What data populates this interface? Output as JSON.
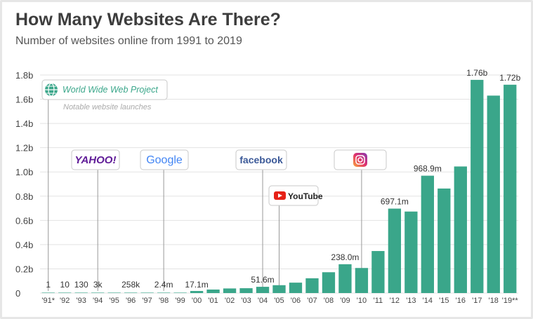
{
  "title": "How Many Websites Are There?",
  "subtitle": "Number of websites online from 1991 to 2019",
  "legend": {
    "project_label": "World Wide Web Project",
    "notable_label": "Notable website launches"
  },
  "logos": {
    "yahoo": "YAHOO!",
    "google": "Google",
    "facebook": "facebook",
    "youtube": "YouTube"
  },
  "colors": {
    "bar": "#3aa68a",
    "grid": "#e3e3e3",
    "instagram_gradient": [
      "#f9a93a",
      "#e1306c",
      "#833ab4"
    ],
    "youtube_red": "#e62117",
    "facebook_blue": "#3b5998",
    "yahoo_purple": "#5f1b97"
  },
  "chart_data": {
    "type": "bar",
    "title": "How Many Websites Are There?",
    "subtitle": "Number of websites online from 1991 to 2019",
    "xlabel": "",
    "ylabel": "",
    "ylim": [
      0,
      1.8
    ],
    "y_ticks": [
      "0",
      "0.2b",
      "0.4b",
      "0.6b",
      "0.8b",
      "1.0b",
      "1.2b",
      "1.4b",
      "1.6b",
      "1.8b"
    ],
    "grid": true,
    "categories": [
      "'91*",
      "'92",
      "'93",
      "'94",
      "'95",
      "'96",
      "'97",
      "'98",
      "'99",
      "'00",
      "'01",
      "'02",
      "'03",
      "'04",
      "'05",
      "'06",
      "'07",
      "'08",
      "'09",
      "'10",
      "'11",
      "'12",
      "'13",
      "'14",
      "'15",
      "'16",
      "'17",
      "'18",
      "'19**"
    ],
    "values": [
      1e-09,
      1e-08,
      1.3e-07,
      3e-06,
      2e-05,
      0.000258,
      0.0012,
      0.0024,
      0.0032,
      0.0171,
      0.029,
      0.038,
      0.04,
      0.0516,
      0.065,
      0.086,
      0.122,
      0.172,
      0.238,
      0.207,
      0.347,
      0.6971,
      0.673,
      0.9689,
      0.863,
      1.045,
      1.76,
      1.63,
      1.72
    ],
    "data_labels": [
      {
        "index": 0,
        "text": "1"
      },
      {
        "index": 1,
        "text": "10"
      },
      {
        "index": 2,
        "text": "130"
      },
      {
        "index": 3,
        "text": "3k"
      },
      {
        "index": 5,
        "text": "258k"
      },
      {
        "index": 7,
        "text": "2.4m"
      },
      {
        "index": 9,
        "text": "17.1m"
      },
      {
        "index": 13,
        "text": "51.6m"
      },
      {
        "index": 18,
        "text": "238.0m"
      },
      {
        "index": 21,
        "text": "697.1m"
      },
      {
        "index": 23,
        "text": "968.9m"
      },
      {
        "index": 26,
        "text": "1.76b"
      },
      {
        "index": 28,
        "text": "1.72b"
      }
    ],
    "annotations": [
      {
        "index": 0,
        "logo": "World Wide Web Project"
      },
      {
        "index": 3,
        "logo": "yahoo"
      },
      {
        "index": 7,
        "logo": "google"
      },
      {
        "index": 13,
        "logo": "facebook"
      },
      {
        "index": 14,
        "logo": "youtube"
      },
      {
        "index": 19,
        "logo": "instagram"
      }
    ]
  }
}
